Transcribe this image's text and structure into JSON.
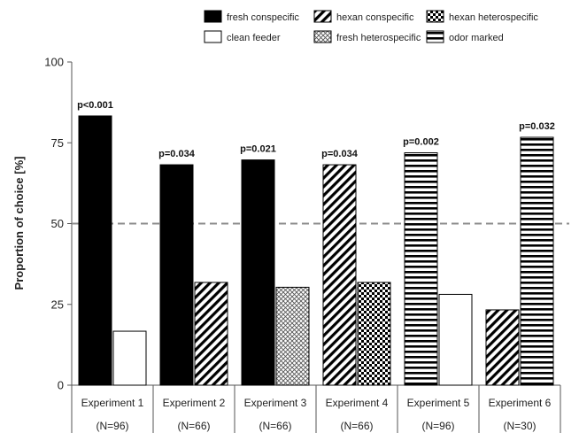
{
  "chart_data": {
    "type": "bar",
    "ylabel": "Proportion of choice [%]",
    "ylim": [
      0,
      100
    ],
    "yticks": [
      0,
      25,
      50,
      75,
      100
    ],
    "reference_line": {
      "y": 50,
      "style": "dashed",
      "color": "#8c8c8c"
    },
    "legend": {
      "placement": "top",
      "entries": [
        {
          "key": "fresh_conspecific",
          "label": "fresh conspecific"
        },
        {
          "key": "hexan_conspecific",
          "label": "hexan conspecific"
        },
        {
          "key": "hexan_heterospecific",
          "label": "hexan heterospecific"
        },
        {
          "key": "clean_feeder",
          "label": "clean feeder"
        },
        {
          "key": "fresh_heterospecific",
          "label": "fresh heterospecific"
        },
        {
          "key": "odor_marked",
          "label": "odor marked"
        }
      ]
    },
    "groups": [
      {
        "category": "Experiment 1",
        "n": "(N=96)",
        "p": "p<0.001",
        "bars": [
          {
            "pattern": "fresh_conspecific",
            "value": 83.3
          },
          {
            "pattern": "clean_feeder",
            "value": 16.7
          }
        ]
      },
      {
        "category": "Experiment 2",
        "n": "(N=66)",
        "p": "p=0.034",
        "bars": [
          {
            "pattern": "fresh_conspecific",
            "value": 68.2
          },
          {
            "pattern": "hexan_conspecific",
            "value": 31.8
          }
        ]
      },
      {
        "category": "Experiment 3",
        "n": "(N=66)",
        "p": "p=0.021",
        "bars": [
          {
            "pattern": "fresh_conspecific",
            "value": 69.7
          },
          {
            "pattern": "fresh_heterospecific",
            "value": 30.3
          }
        ]
      },
      {
        "category": "Experiment 4",
        "n": "(N=66)",
        "p": "p=0.034",
        "bars": [
          {
            "pattern": "hexan_conspecific",
            "value": 68.2
          },
          {
            "pattern": "hexan_heterospecific",
            "value": 31.8
          }
        ]
      },
      {
        "category": "Experiment 5",
        "n": "(N=96)",
        "p": "p=0.002",
        "bars": [
          {
            "pattern": "odor_marked",
            "value": 71.9
          },
          {
            "pattern": "clean_feeder",
            "value": 28.1
          }
        ]
      },
      {
        "category": "Experiment 6",
        "n": "(N=30)",
        "p": "p=0.032",
        "bars": [
          {
            "pattern": "hexan_conspecific",
            "value": 23.3
          },
          {
            "pattern": "odor_marked",
            "value": 76.7
          }
        ]
      }
    ]
  }
}
